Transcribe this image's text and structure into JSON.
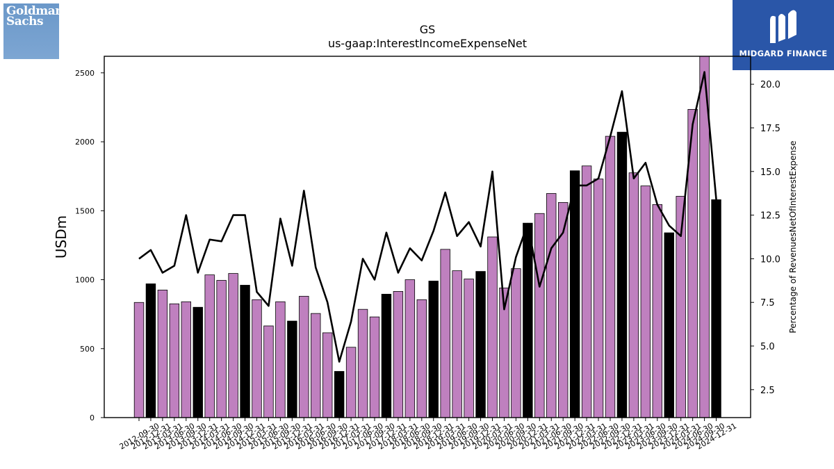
{
  "logos": {
    "left": {
      "line1": "Goldman",
      "line2": "Sachs"
    },
    "right": {
      "text": "MIDGARD FINANCE",
      "mark": "midgard-m-icon"
    }
  },
  "colors": {
    "bar_default": "#bf80bf",
    "bar_highlight": "#000000",
    "line": "#000000"
  },
  "chart_data": {
    "type": "bar",
    "title": "GS",
    "subtitle": "us-gaap:InterestIncomeExpenseNet",
    "ylabel": "USDm",
    "y2label": "Percentage of RevenuesNetOfInterestExpense",
    "ylim": [
      0,
      2620
    ],
    "y2lim": [
      0.9,
      21.6
    ],
    "yticks": [
      0,
      500,
      1000,
      1500,
      2000,
      2500
    ],
    "y2ticks": [
      "2.5",
      "5.0",
      "7.5",
      "10.0",
      "12.5",
      "15.0",
      "17.5",
      "20.0"
    ],
    "categories": [
      "2012-09-30",
      "2012-12-31",
      "2013-03-31",
      "2013-06-30",
      "2013-09-30",
      "2013-12-31",
      "2014-03-31",
      "2014-06-30",
      "2014-09-30",
      "2014-12-31",
      "2015-03-31",
      "2015-06-30",
      "2015-09-30",
      "2015-12-31",
      "2016-03-31",
      "2016-06-30",
      "2016-09-30",
      "2016-12-31",
      "2017-03-31",
      "2017-06-30",
      "2017-09-30",
      "2017-12-31",
      "2018-03-31",
      "2018-06-30",
      "2018-09-30",
      "2018-12-31",
      "2019-03-31",
      "2019-06-30",
      "2019-09-30",
      "2019-12-31",
      "2020-03-31",
      "2020-06-30",
      "2020-09-30",
      "2020-12-31",
      "2021-03-31",
      "2021-06-30",
      "2021-09-30",
      "2021-12-31",
      "2022-03-31",
      "2022-06-30",
      "2022-09-30",
      "2022-12-31",
      "2023-03-31",
      "2023-06-30",
      "2023-09-30",
      "2023-12-31",
      "2024-03-31",
      "2024-06-30",
      "2024-09-30",
      "2024-12-31"
    ],
    "series": [
      {
        "kind": "bar",
        "values": [
          835,
          970,
          925,
          825,
          840,
          800,
          1035,
          995,
          1045,
          960,
          855,
          665,
          840,
          700,
          880,
          755,
          615,
          335,
          510,
          785,
          730,
          895,
          915,
          1000,
          855,
          990,
          1220,
          1065,
          1005,
          1060,
          1310,
          940,
          1080,
          1410,
          1480,
          1625,
          1560,
          1790,
          1825,
          1730,
          2040,
          2070,
          1775,
          1680,
          1545,
          1340,
          1605,
          2235,
          2620,
          1580
        ],
        "highlight": [
          false,
          true,
          false,
          false,
          false,
          true,
          false,
          false,
          false,
          true,
          false,
          false,
          false,
          true,
          false,
          false,
          false,
          true,
          false,
          false,
          false,
          true,
          false,
          false,
          false,
          true,
          false,
          false,
          false,
          true,
          false,
          false,
          false,
          true,
          false,
          false,
          false,
          true,
          false,
          false,
          false,
          true,
          false,
          false,
          false,
          true,
          false,
          false,
          false,
          true
        ]
      },
      {
        "kind": "line",
        "axis": "y2",
        "values": [
          10.0,
          10.5,
          9.2,
          9.6,
          12.5,
          9.2,
          11.1,
          11.0,
          12.5,
          12.5,
          8.1,
          7.3,
          12.3,
          9.6,
          13.9,
          9.5,
          7.5,
          4.1,
          6.4,
          10.0,
          8.8,
          11.5,
          9.2,
          10.6,
          9.9,
          11.6,
          13.8,
          11.3,
          12.1,
          10.7,
          15.0,
          7.1,
          10.1,
          12.0,
          8.4,
          10.6,
          11.5,
          14.2,
          14.2,
          14.6,
          17.0,
          19.6,
          14.6,
          15.5,
          13.1,
          11.9,
          11.3,
          17.7,
          20.7,
          13.4
        ]
      }
    ],
    "grid": false,
    "legend": "none"
  }
}
